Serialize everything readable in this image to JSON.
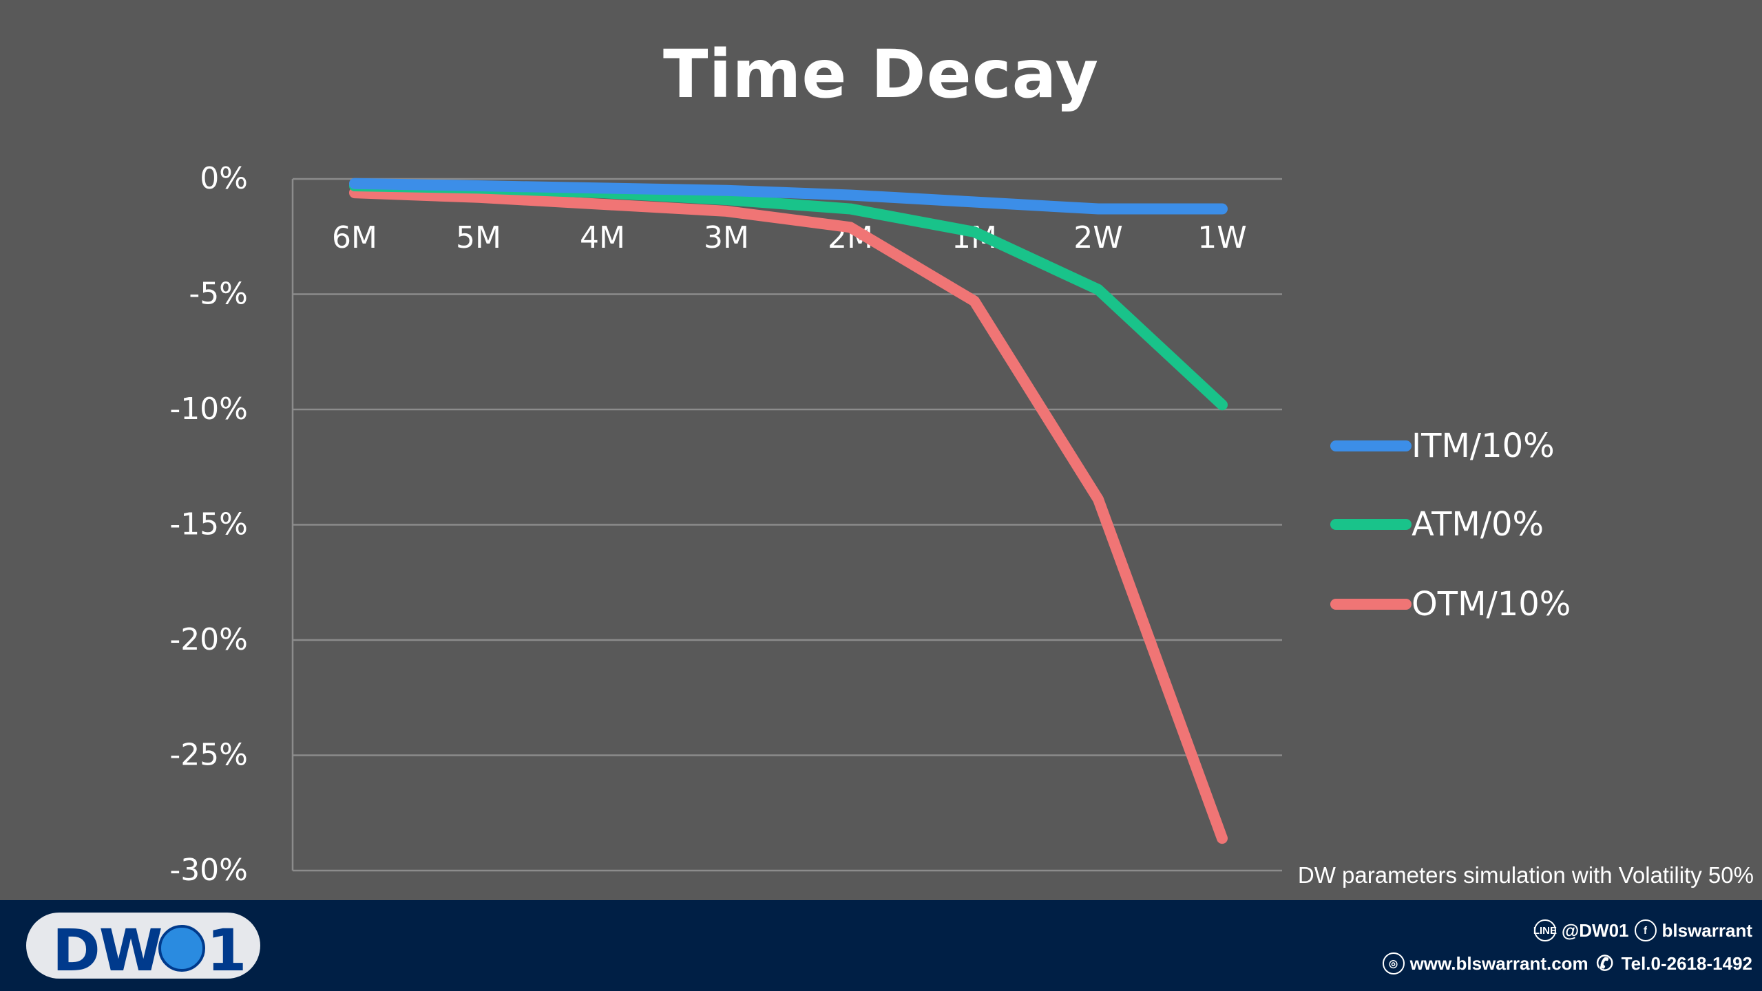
{
  "chart_data": {
    "type": "line",
    "title": "Time Decay",
    "categories": [
      "6M",
      "5M",
      "4M",
      "3M",
      "2M",
      "1M",
      "2W",
      "1W"
    ],
    "yticks": [
      "0%",
      "-5%",
      "-10%",
      "-15%",
      "-20%",
      "-25%",
      "-30%"
    ],
    "ylim": [
      -30,
      0
    ],
    "grid": true,
    "legend_position": "right",
    "series": [
      {
        "name": "ITM/10%",
        "color": "#3c8ee8",
        "values": [
          -0.2,
          -0.3,
          -0.4,
          -0.5,
          -0.7,
          -1.0,
          -1.3,
          -1.3
        ]
      },
      {
        "name": "ATM/0%",
        "color": "#19c38a",
        "values": [
          -0.3,
          -0.4,
          -0.6,
          -0.9,
          -1.3,
          -2.3,
          -4.8,
          -9.8
        ]
      },
      {
        "name": "OTM/10%",
        "color": "#f07575",
        "values": [
          -0.6,
          -0.8,
          -1.1,
          -1.4,
          -2.1,
          -5.3,
          -13.9,
          -28.6
        ]
      }
    ]
  },
  "note": "DW parameters simulation with Volatility 50%",
  "footer": {
    "logo_text": "DW",
    "logo_digit": "1",
    "line_icon": "line-icon",
    "line_handle": "@DW01",
    "facebook_icon": "facebook-icon",
    "facebook_handle": "blswarrant",
    "globe_icon": "globe-icon",
    "website": "www.blswarrant.com",
    "phone_icon": "phone-icon",
    "phone": "Tel.0-2618-1492"
  }
}
